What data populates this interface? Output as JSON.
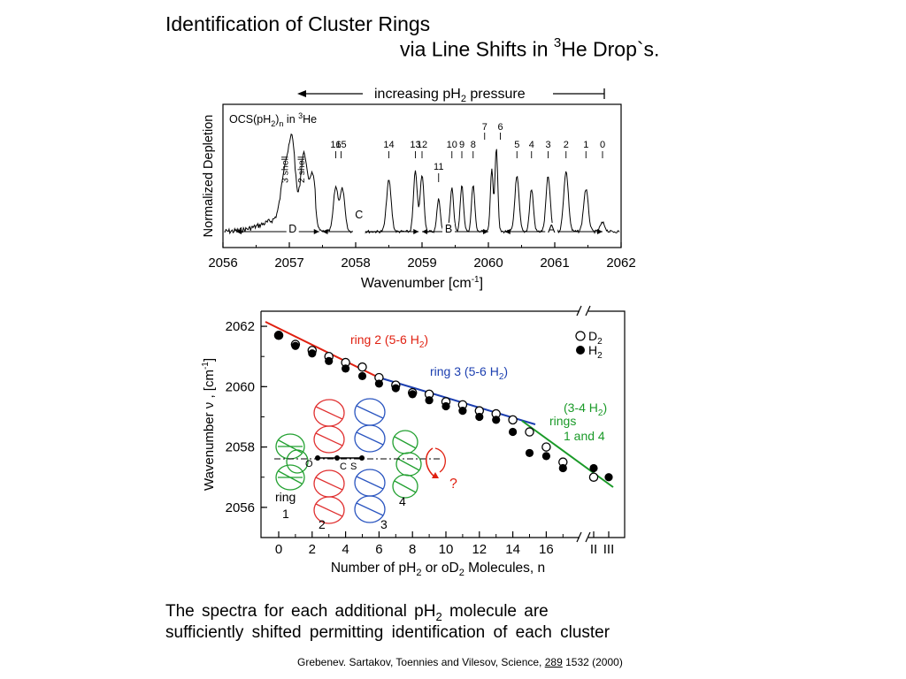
{
  "page": {
    "title_line1": "Identification of Cluster Rings",
    "title_line2_pre": "via Line Shifts in ",
    "title_line2_sup": "3",
    "title_line2_post": "He Drop`s.",
    "caption_line1_pre": "The  spectra  for each additional  pH",
    "caption_line1_sub": "2",
    "caption_line1_post": " molecule are",
    "caption_line2": "sufficiently  shifted  permitting  identification  of  each  cluster",
    "citation_pre": "Grebenev. Sartakov, Toennies and Vilesov, Science, ",
    "citation_volume": "289",
    "citation_post": " 1532 (2000)"
  },
  "chart_data": [
    {
      "type": "line",
      "title": "",
      "arrow_label": "increasing pH2 pressure",
      "inset_label": "OCS(pH2)n  in 3He",
      "xlabel": "Wavenumber  [cm-1]",
      "ylabel": "Normalized  Depletion",
      "xlim": [
        2056,
        2062
      ],
      "x_ticks": [
        2056,
        2057,
        2058,
        2059,
        2060,
        2061,
        2062
      ],
      "peak_labels": [
        {
          "label": "16",
          "x": 2057.7
        },
        {
          "label": "15",
          "x": 2057.78
        },
        {
          "label": "14",
          "x": 2058.5
        },
        {
          "label": "13",
          "x": 2058.9
        },
        {
          "label": "12",
          "x": 2059.0
        },
        {
          "label": "11",
          "x": 2059.25
        },
        {
          "label": "10",
          "x": 2059.45
        },
        {
          "label": "9",
          "x": 2059.6
        },
        {
          "label": "8",
          "x": 2059.77
        },
        {
          "label": "7",
          "x": 2060.05
        },
        {
          "label": "6",
          "x": 2060.1
        },
        {
          "label": "5",
          "x": 2060.43
        },
        {
          "label": "4",
          "x": 2060.65
        },
        {
          "label": "3",
          "x": 2060.9
        },
        {
          "label": "2",
          "x": 2061.17
        },
        {
          "label": "1",
          "x": 2061.47
        },
        {
          "label": "0",
          "x": 2061.72
        }
      ],
      "shell_labels": [
        {
          "label": "3 shell",
          "x": 2056.95
        },
        {
          "label": "2 shell",
          "x": 2057.2
        }
      ],
      "region_labels": [
        {
          "label": "D",
          "x": 2057.05
        },
        {
          "label": "C",
          "x": 2058.05
        },
        {
          "label": "B",
          "x": 2059.4
        },
        {
          "label": "A",
          "x": 2060.95
        }
      ]
    },
    {
      "type": "scatter",
      "title": "",
      "xlabel": "Number of pH2 or oD2 Molecules, n",
      "ylabel": "Wavenumber ν , [cm-1]",
      "ylim": [
        2055,
        2062.5
      ],
      "y_ticks": [
        2056,
        2058,
        2060,
        2062
      ],
      "x_ticks": [
        "0",
        "2",
        "4",
        "6",
        "8",
        "10",
        "12",
        "14",
        "16",
        "II",
        "III"
      ],
      "legend": [
        "D2",
        "H2"
      ],
      "series": [
        {
          "name": "D2",
          "marker": "open-circle",
          "points": [
            [
              0,
              2061.7
            ],
            [
              1,
              2061.4
            ],
            [
              2,
              2061.2
            ],
            [
              3,
              2061.0
            ],
            [
              4,
              2060.8
            ],
            [
              5,
              2060.65
            ],
            [
              6,
              2060.3
            ],
            [
              7,
              2060.05
            ],
            [
              8,
              2059.8
            ],
            [
              9,
              2059.75
            ],
            [
              10,
              2059.5
            ],
            [
              11,
              2059.4
            ],
            [
              12,
              2059.2
            ],
            [
              13,
              2059.1
            ],
            [
              14,
              2058.9
            ],
            [
              15,
              2058.5
            ],
            [
              16,
              2058.0
            ],
            [
              17,
              2057.5
            ],
            [
              18,
              2057.0
            ]
          ]
        },
        {
          "name": "H2",
          "marker": "filled-circle",
          "points": [
            [
              0,
              2061.7
            ],
            [
              1,
              2061.35
            ],
            [
              2,
              2061.1
            ],
            [
              3,
              2060.85
            ],
            [
              4,
              2060.6
            ],
            [
              5,
              2060.35
            ],
            [
              6,
              2060.1
            ],
            [
              7,
              2059.95
            ],
            [
              8,
              2059.75
            ],
            [
              9,
              2059.55
            ],
            [
              10,
              2059.35
            ],
            [
              11,
              2059.2
            ],
            [
              12,
              2059.0
            ],
            [
              13,
              2058.9
            ],
            [
              14,
              2058.5
            ],
            [
              15,
              2057.8
            ],
            [
              16,
              2057.7
            ],
            [
              17,
              2057.3
            ],
            [
              18,
              2057.3
            ],
            [
              19,
              2057.0
            ]
          ]
        }
      ],
      "fit_lines": [
        {
          "label": "ring 2 (5-6 H2)",
          "color": "#e02010"
        },
        {
          "label": "ring 3  (5-6 H2)",
          "color": "#1c3fb0"
        },
        {
          "label": "(3-4 H2)",
          "color": "#1a9a28"
        }
      ],
      "rings_label_1": "rings",
      "rings_label_2": "1 and 4",
      "diagram": {
        "ring_left": "ring",
        "ring_left_num": "1",
        "ring2_num": "2",
        "ring3_num": "3",
        "ring4_num": "4",
        "atom_o": "O",
        "atom_c": "C",
        "atom_s": "S",
        "rotation_mark": "?"
      }
    }
  ]
}
